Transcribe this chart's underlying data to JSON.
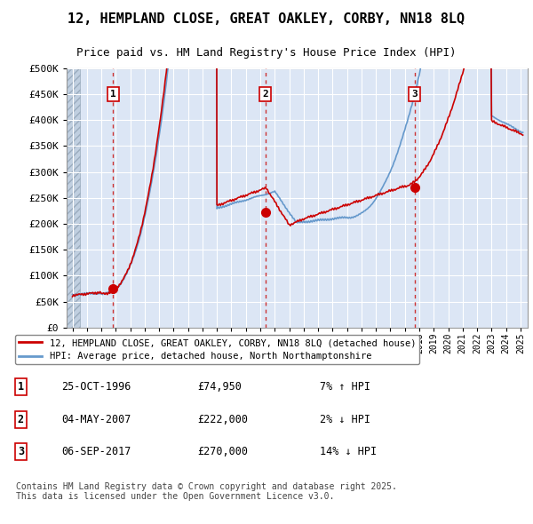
{
  "title": "12, HEMPLAND CLOSE, GREAT OAKLEY, CORBY, NN18 8LQ",
  "subtitle": "Price paid vs. HM Land Registry's House Price Index (HPI)",
  "legend_property": "12, HEMPLAND CLOSE, GREAT OAKLEY, CORBY, NN18 8LQ (detached house)",
  "legend_hpi": "HPI: Average price, detached house, North Northamptonshire",
  "footer": "Contains HM Land Registry data © Crown copyright and database right 2025.\nThis data is licensed under the Open Government Licence v3.0.",
  "ylim": [
    0,
    500000
  ],
  "yticks": [
    0,
    50000,
    100000,
    150000,
    200000,
    250000,
    300000,
    350000,
    400000,
    450000,
    500000
  ],
  "ytick_labels": [
    "£0",
    "£50K",
    "£100K",
    "£150K",
    "£200K",
    "£250K",
    "£300K",
    "£350K",
    "£400K",
    "£450K",
    "£500K"
  ],
  "sales": [
    {
      "num": 1,
      "year": 1996.81,
      "price": 74950,
      "label": "25-OCT-1996",
      "pct": "7%",
      "dir": "↑"
    },
    {
      "num": 2,
      "year": 2007.34,
      "price": 222000,
      "label": "04-MAY-2007",
      "pct": "2%",
      "dir": "↓"
    },
    {
      "num": 3,
      "year": 2017.68,
      "price": 270000,
      "label": "06-SEP-2017",
      "pct": "14%",
      "dir": "↓"
    }
  ],
  "table_rows": [
    {
      "num": "1",
      "date": "25-OCT-1996",
      "price": "£74,950",
      "pct": "7% ↑ HPI"
    },
    {
      "num": "2",
      "date": "04-MAY-2007",
      "price": "£222,000",
      "pct": "2% ↓ HPI"
    },
    {
      "num": "3",
      "date": "06-SEP-2017",
      "price": "£270,000",
      "pct": "14% ↓ HPI"
    }
  ],
  "red_line_color": "#cc0000",
  "blue_line_color": "#6699cc",
  "marker_color": "#cc0000",
  "dashed_line_color": "#cc3333",
  "box_color": "#ffffff",
  "box_edge_color": "#cc0000",
  "grid_color": "#ffffff",
  "axis_bg_color": "#dce6f5",
  "hatch_color": "#c0cfe0"
}
